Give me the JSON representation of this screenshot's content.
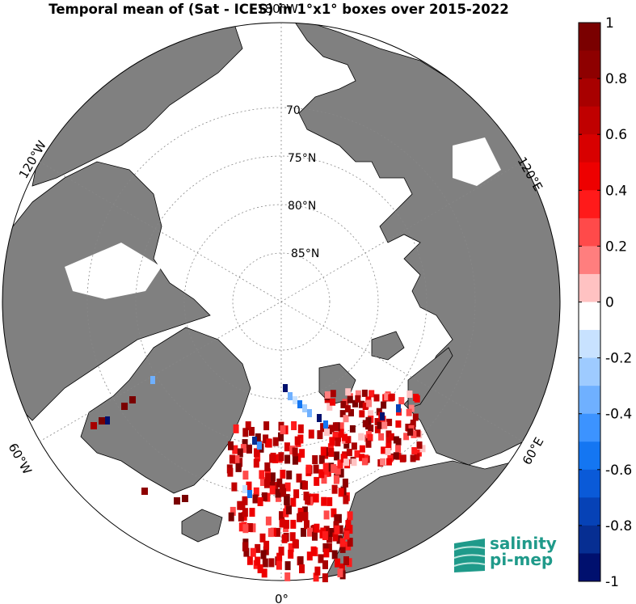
{
  "title": "Temporal mean of (Sat - ICES) in 1°x1° boxes over 2015-2022",
  "map": {
    "projection": "north polar stereographic",
    "colors": {
      "land": "#808080",
      "ice": "#ffffff",
      "ocean": "#ffffff",
      "coast": "#000000"
    },
    "lon_labels": [
      {
        "text": "180°W",
        "id": "lon-label-180w"
      },
      {
        "text": "120°W",
        "id": "lon-label-120w"
      },
      {
        "text": "120°E",
        "id": "lon-label-120e"
      },
      {
        "text": "60°W",
        "id": "lon-label-60w"
      },
      {
        "text": "60°E",
        "id": "lon-label-60e"
      },
      {
        "text": "0°",
        "id": "lon-label-0"
      }
    ],
    "lat_labels": [
      {
        "text": "70",
        "id": "lat-label-70"
      },
      {
        "text": "75°N",
        "id": "lat-label-75"
      },
      {
        "text": "80°N",
        "id": "lat-label-80"
      },
      {
        "text": "85°N",
        "id": "lat-label-85"
      }
    ]
  },
  "colorbar": {
    "min": -1,
    "max": 1,
    "levels": 20,
    "tick_labels": [
      "1",
      "0.8",
      "0.6",
      "0.4",
      "0.2",
      "0",
      "-0.2",
      "-0.4",
      "-0.6",
      "-0.8",
      "-1"
    ],
    "colors_top_to_bottom": [
      "#7a0000",
      "#8e0000",
      "#a80000",
      "#c00000",
      "#d80000",
      "#ee0000",
      "#ff1a1a",
      "#ff4a4a",
      "#ff7e7e",
      "#ffc2c2",
      "#ffffff",
      "#c8e2ff",
      "#9ecbff",
      "#6fb0ff",
      "#3c93ff",
      "#1476f2",
      "#0a5ad8",
      "#0642b6",
      "#062e92",
      "#00106e"
    ]
  },
  "logo": {
    "line1": "salinity",
    "line2": "pi-mep"
  }
}
